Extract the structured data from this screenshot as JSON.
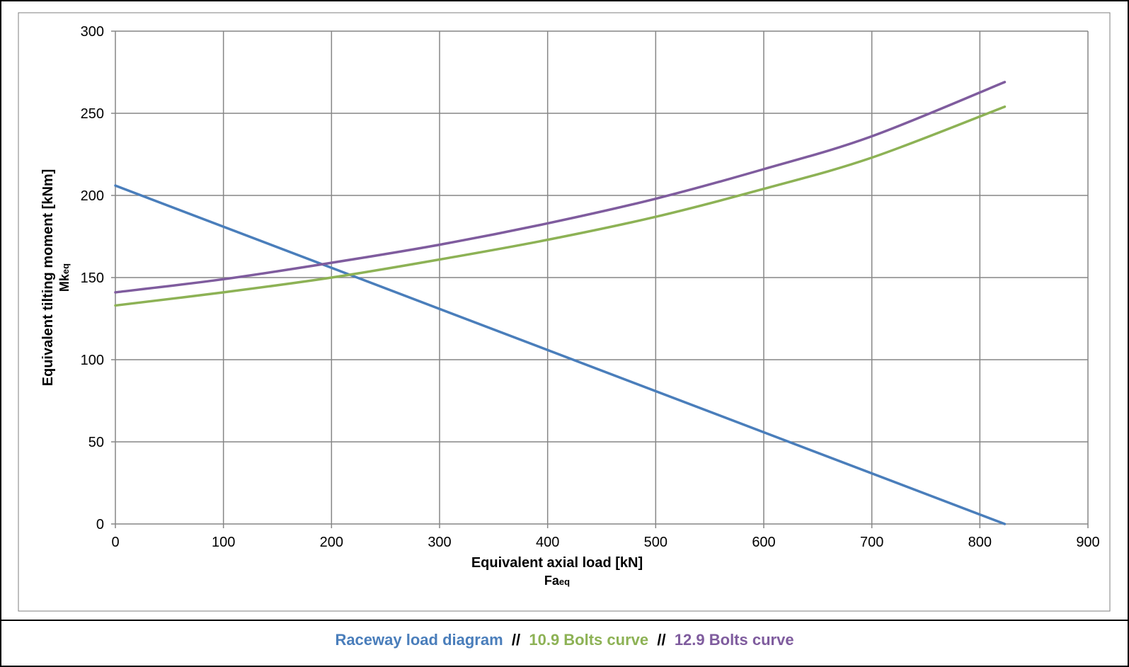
{
  "chart_data": {
    "type": "line",
    "xlabel": "Equivalent axial load [kN]",
    "xlabel_sub_main": "Fa",
    "xlabel_sub_sub": "eq",
    "ylabel": "Equivalent tilting moment [kNm]",
    "ylabel_sub_main": "Mk",
    "ylabel_sub_sub": "eq",
    "xlim": [
      0,
      900
    ],
    "ylim": [
      0,
      300
    ],
    "x_ticks": [
      "0",
      "100",
      "200",
      "300",
      "400",
      "500",
      "600",
      "700",
      "800",
      "900"
    ],
    "y_ticks": [
      "0",
      "50",
      "100",
      "150",
      "200",
      "250",
      "300"
    ],
    "grid": true,
    "legend_position": "bottom",
    "legend_separator": "//",
    "series": [
      {
        "name": "Raceway load diagram",
        "color": "#4a7ebb",
        "x": [
          0,
          823
        ],
        "y": [
          206,
          0
        ]
      },
      {
        "name": "10.9 Bolts curve",
        "color": "#8db255",
        "x": [
          0,
          100,
          200,
          300,
          400,
          500,
          600,
          700,
          823
        ],
        "y": [
          133,
          141,
          150,
          161,
          173,
          187,
          204,
          223,
          254
        ]
      },
      {
        "name": "12.9 Bolts curve",
        "color": "#7f5c9e",
        "x": [
          0,
          100,
          200,
          300,
          400,
          500,
          600,
          700,
          823
        ],
        "y": [
          141,
          149,
          159,
          170,
          183,
          198,
          216,
          236,
          269
        ]
      }
    ]
  }
}
